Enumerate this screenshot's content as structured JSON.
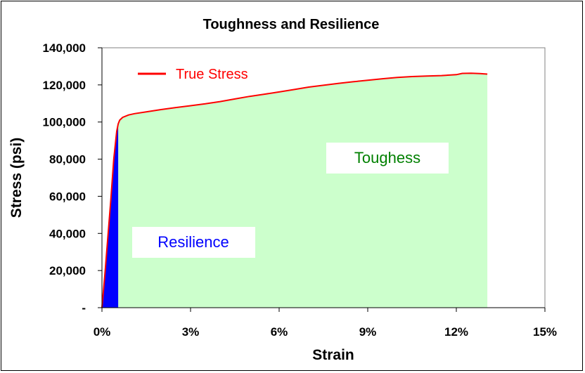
{
  "chart_data": {
    "type": "area",
    "title": "Toughness and Resilience",
    "xlabel": "Strain",
    "ylabel": "Stress (psi)",
    "xlim": [
      0,
      0.15
    ],
    "ylim": [
      0,
      140000
    ],
    "x_ticks": [
      0,
      0.03,
      0.06,
      0.09,
      0.12,
      0.15
    ],
    "x_tick_labels": [
      "0%",
      "3%",
      "6%",
      "9%",
      "12%",
      "15%"
    ],
    "y_ticks": [
      0,
      20000,
      40000,
      60000,
      80000,
      100000,
      120000,
      140000
    ],
    "y_tick_labels": [
      "-",
      "20,000",
      "40,000",
      "60,000",
      "80,000",
      "100,000",
      "120,000",
      "140,000"
    ],
    "legend": {
      "position": "top-left",
      "entries": [
        "True Stress"
      ]
    },
    "grid": false,
    "series": [
      {
        "name": "True Stress",
        "color": "#ff0000",
        "points": [
          [
            0.0,
            0
          ],
          [
            0.001,
            18000
          ],
          [
            0.002,
            38000
          ],
          [
            0.003,
            58000
          ],
          [
            0.004,
            80000
          ],
          [
            0.005,
            95000
          ],
          [
            0.0055,
            99000
          ],
          [
            0.006,
            101000
          ],
          [
            0.007,
            102500
          ],
          [
            0.009,
            103800
          ],
          [
            0.011,
            104500
          ],
          [
            0.015,
            105500
          ],
          [
            0.02,
            106700
          ],
          [
            0.025,
            107800
          ],
          [
            0.03,
            108800
          ],
          [
            0.035,
            109800
          ],
          [
            0.04,
            111000
          ],
          [
            0.045,
            112400
          ],
          [
            0.05,
            113800
          ],
          [
            0.055,
            115000
          ],
          [
            0.06,
            116200
          ],
          [
            0.065,
            117500
          ],
          [
            0.07,
            118800
          ],
          [
            0.075,
            119800
          ],
          [
            0.08,
            120800
          ],
          [
            0.085,
            121700
          ],
          [
            0.09,
            122500
          ],
          [
            0.095,
            123300
          ],
          [
            0.1,
            124000
          ],
          [
            0.105,
            124500
          ],
          [
            0.11,
            124800
          ],
          [
            0.115,
            125000
          ],
          [
            0.12,
            125500
          ],
          [
            0.122,
            126200
          ],
          [
            0.125,
            126300
          ],
          [
            0.128,
            126100
          ],
          [
            0.1305,
            125800
          ]
        ]
      }
    ],
    "regions": [
      {
        "label": "Resilience",
        "color": "#0000ff",
        "x_end": 0.0055
      },
      {
        "label": "Toughness",
        "color": "#ccffcc",
        "x_start": 0.0055,
        "x_end": 0.1305
      }
    ]
  },
  "annotations": {
    "resilience": "Resilience",
    "toughness": "Toughess"
  }
}
